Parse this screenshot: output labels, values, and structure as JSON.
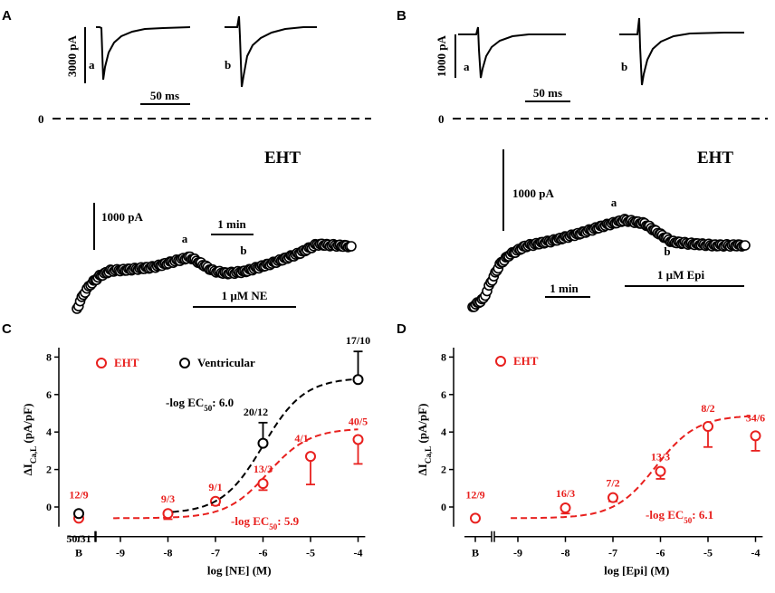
{
  "colors": {
    "eht": "#e8201e",
    "ventricular": "#000000",
    "axis": "#000000"
  },
  "panel_a": {
    "letter": "A",
    "top_scale_current": "3000 pA",
    "top_scale_time": "50 ms",
    "top_label_a": "a",
    "top_label_b": "b",
    "zero": "0",
    "title": "EHT",
    "bottom_scale_current": "1000 pA",
    "bottom_scale_time": "1 min",
    "point_a": "a",
    "point_b": "b",
    "drug": "1 µM NE"
  },
  "panel_b": {
    "letter": "B",
    "top_scale_current": "1000 pA",
    "top_scale_time": "50 ms",
    "top_label_a": "a",
    "top_label_b": "b",
    "zero": "0",
    "title": "EHT",
    "bottom_scale_current": "1000 pA",
    "bottom_scale_time": "1 min",
    "point_a": "a",
    "point_b": "b",
    "drug": "1 µM Epi"
  },
  "chart_data": [
    {
      "panel": "C",
      "type": "scatter",
      "xlabel": "log [NE] (M)",
      "ylabel": "ΔICa,L (pA/pF)",
      "ylim": [
        -1,
        8.5
      ],
      "xlim": [
        -9.3,
        -3.8
      ],
      "x_ticks": [
        "B",
        "-9",
        "-8",
        "-7",
        "-6",
        "-5",
        "-4"
      ],
      "y_ticks": [
        "0",
        "2",
        "4",
        "6",
        "8"
      ],
      "legend": [
        "EHT",
        "Ventricular"
      ],
      "series": [
        {
          "name": "EHT",
          "color": "#e8201e",
          "baseline": {
            "value": -0.6,
            "label": "12/9"
          },
          "x": [
            -8,
            -7,
            -6,
            -5,
            -4
          ],
          "values": [
            -0.35,
            0.3,
            1.25,
            2.7,
            3.6
          ],
          "error": [
            0.3,
            0.2,
            0.35,
            1.5,
            1.3
          ],
          "labels": [
            "9/3",
            "9/1",
            "13/3",
            "4/1",
            "40/5"
          ],
          "annotation": "-log EC50: 5.9",
          "ec50_log": -5.9
        },
        {
          "name": "Ventricular",
          "color": "#000000",
          "baseline": {
            "value": -0.35,
            "label": "50/31"
          },
          "x": [
            -6,
            -4
          ],
          "values": [
            3.4,
            6.8
          ],
          "error": [
            1.1,
            1.5
          ],
          "labels": [
            "20/12",
            "17/10"
          ],
          "annotation": "-log EC50: 6.0",
          "ec50_log": -6.0
        }
      ]
    },
    {
      "panel": "D",
      "type": "scatter",
      "xlabel": "log [Epi] (M)",
      "ylabel": "ΔICa,L (pA/pF)",
      "ylim": [
        -1,
        8.5
      ],
      "xlim": [
        -9.3,
        -3.8
      ],
      "x_ticks": [
        "B",
        "-9",
        "-8",
        "-7",
        "-6",
        "-5",
        "-4"
      ],
      "y_ticks": [
        "0",
        "2",
        "4",
        "6",
        "8"
      ],
      "legend": [
        "EHT"
      ],
      "series": [
        {
          "name": "EHT",
          "color": "#e8201e",
          "baseline": {
            "value": -0.6,
            "label": "12/9"
          },
          "x": [
            -8,
            -7,
            -6,
            -5,
            -4
          ],
          "values": [
            -0.05,
            0.5,
            1.9,
            4.3,
            3.8
          ],
          "error": [
            0.3,
            0.2,
            0.4,
            1.1,
            0.8
          ],
          "labels": [
            "16/3",
            "7/2",
            "13/3",
            "8/2",
            "34/6"
          ],
          "annotation": "-log EC50: 6.1",
          "ec50_log": -6.1
        }
      ]
    }
  ]
}
